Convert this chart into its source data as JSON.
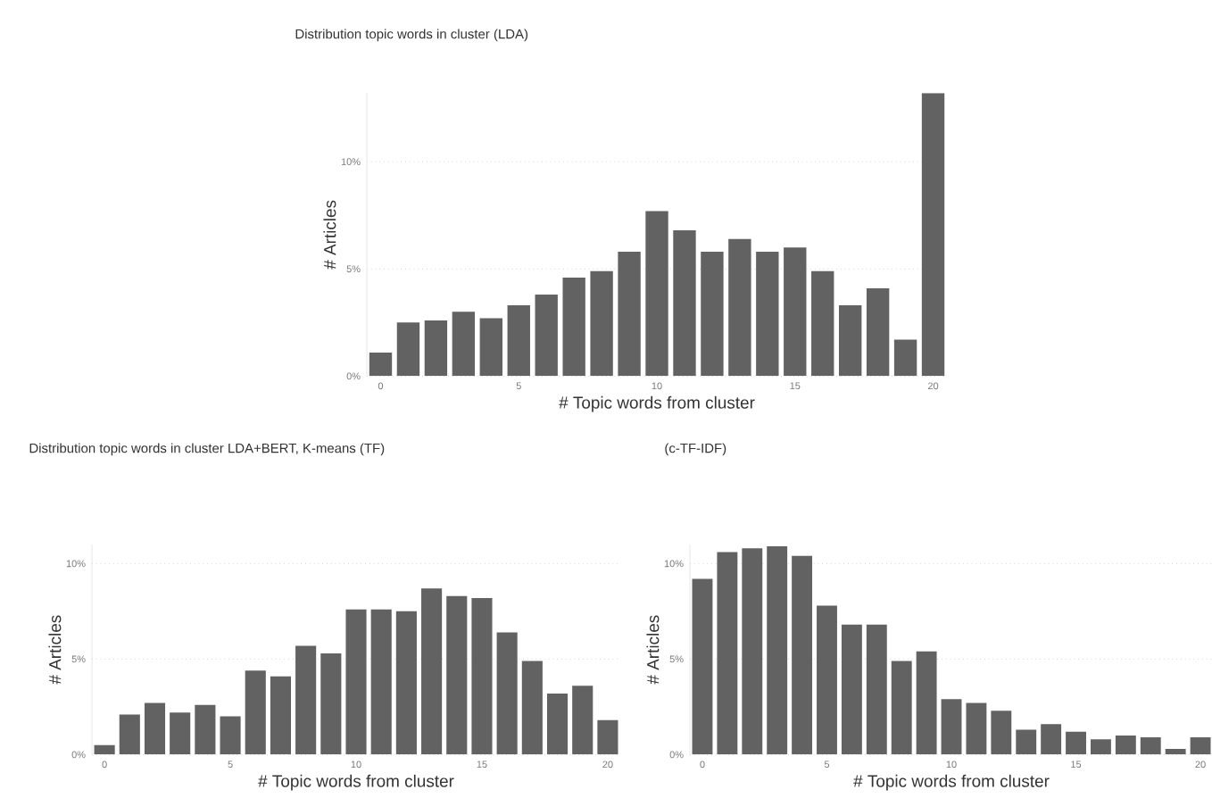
{
  "chart_data": [
    {
      "type": "bar",
      "title": "Distribution topic words in cluster (LDA)",
      "xlabel": "# Topic words from cluster",
      "ylabel": "# Articles",
      "color": "#626262",
      "grid": "y",
      "x": [
        0,
        1,
        2,
        3,
        4,
        5,
        6,
        7,
        8,
        9,
        10,
        11,
        12,
        13,
        14,
        15,
        16,
        17,
        18,
        19,
        20
      ],
      "values": [
        1.1,
        2.5,
        2.6,
        3.0,
        2.7,
        3.3,
        3.8,
        4.6,
        4.9,
        5.8,
        7.7,
        6.8,
        5.8,
        6.4,
        5.8,
        6.0,
        4.9,
        3.3,
        4.1,
        1.7,
        13.2
      ],
      "xlim": [
        -0.5,
        20.5
      ],
      "xticks": [
        0,
        5,
        10,
        15,
        20
      ],
      "ylim": [
        0,
        13.2
      ],
      "yticks": [
        {
          "value": 0,
          "label": "0%"
        },
        {
          "value": 5,
          "label": "5%"
        },
        {
          "value": 10,
          "label": "10%"
        }
      ]
    },
    {
      "type": "bar",
      "title": "Distribution topic words in cluster LDA+BERT, K-means (TF)",
      "xlabel": "# Topic words from cluster",
      "ylabel": "# Articles",
      "color": "#626262",
      "grid": "y",
      "x": [
        0,
        1,
        2,
        3,
        4,
        5,
        6,
        7,
        8,
        9,
        10,
        11,
        12,
        13,
        14,
        15,
        16,
        17,
        18,
        19,
        20
      ],
      "values": [
        0.5,
        2.1,
        2.7,
        2.2,
        2.6,
        2.0,
        4.4,
        4.1,
        5.7,
        5.3,
        7.6,
        7.6,
        7.5,
        8.7,
        8.3,
        8.2,
        6.4,
        4.9,
        3.2,
        3.6,
        1.8
      ],
      "xlim": [
        -0.5,
        20.5
      ],
      "xticks": [
        0,
        5,
        10,
        15,
        20
      ],
      "ylim": [
        0,
        11
      ],
      "yticks": [
        {
          "value": 0,
          "label": "0%"
        },
        {
          "value": 5,
          "label": "5%"
        },
        {
          "value": 10,
          "label": "10%"
        }
      ]
    },
    {
      "type": "bar",
      "title": "(c-TF-IDF)",
      "xlabel": "# Topic words from cluster",
      "ylabel": "# Articles",
      "color": "#626262",
      "grid": "y",
      "x": [
        0,
        1,
        2,
        3,
        4,
        5,
        6,
        7,
        8,
        9,
        10,
        11,
        12,
        13,
        14,
        15,
        16,
        17,
        18,
        19,
        20
      ],
      "values": [
        9.2,
        10.6,
        10.8,
        10.9,
        10.4,
        7.8,
        6.8,
        6.8,
        4.9,
        5.4,
        2.9,
        2.7,
        2.3,
        1.3,
        1.6,
        1.2,
        0.8,
        1.0,
        0.9,
        0.3,
        0.9
      ],
      "xlim": [
        -0.5,
        20.5
      ],
      "xticks": [
        0,
        5,
        10,
        15,
        20
      ],
      "ylim": [
        0,
        11
      ],
      "yticks": [
        {
          "value": 0,
          "label": "0%"
        },
        {
          "value": 5,
          "label": "5%"
        },
        {
          "value": 10,
          "label": "10%"
        }
      ]
    }
  ]
}
